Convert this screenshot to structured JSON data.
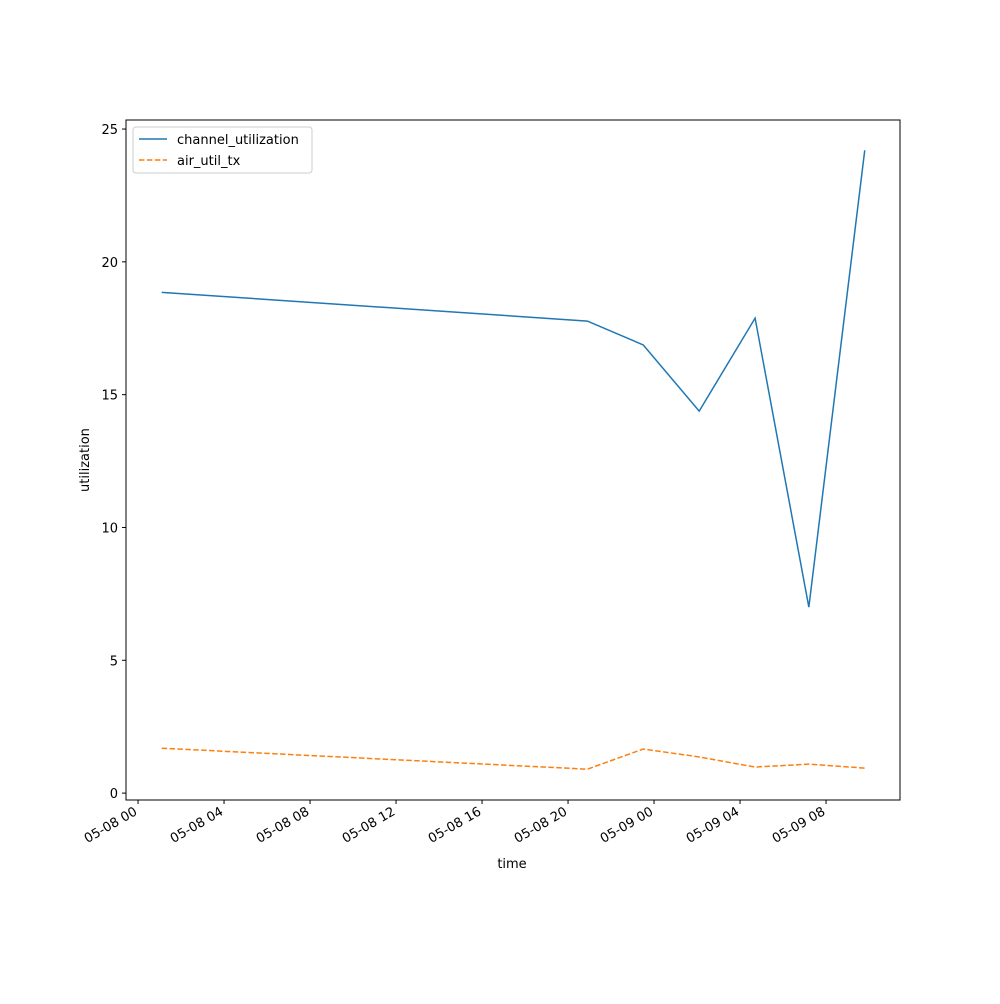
{
  "chart_data": {
    "type": "line",
    "xlabel": "time",
    "ylabel": "utilization",
    "x": [
      1.1,
      20.9,
      23.5,
      26.1,
      28.7,
      31.2,
      33.8
    ],
    "series": [
      {
        "name": "channel_utilization",
        "color": "#1f77b4",
        "dash": "solid",
        "values": [
          18.85,
          17.77,
          16.87,
          14.38,
          17.88,
          7.0,
          24.2
        ]
      },
      {
        "name": "air_util_tx",
        "color": "#ff7f0e",
        "dash": "dashed",
        "values": [
          1.69,
          0.9,
          1.66,
          1.36,
          0.98,
          1.09,
          0.94
        ]
      }
    ],
    "xlim": [
      -0.56,
      35.44
    ],
    "xticks": [
      {
        "value": 0,
        "label": "05-08 00"
      },
      {
        "value": 4,
        "label": "05-08 04"
      },
      {
        "value": 8,
        "label": "05-08 08"
      },
      {
        "value": 12,
        "label": "05-08 12"
      },
      {
        "value": 16,
        "label": "05-08 16"
      },
      {
        "value": 20,
        "label": "05-08 20"
      },
      {
        "value": 24,
        "label": "05-09 00"
      },
      {
        "value": 28,
        "label": "05-09 04"
      },
      {
        "value": 32,
        "label": "05-09 08"
      }
    ],
    "ylim": [
      -0.26,
      25.34
    ],
    "yticks": [
      0,
      5,
      10,
      15,
      20,
      25
    ],
    "legend": "upper left",
    "grid": false
  }
}
